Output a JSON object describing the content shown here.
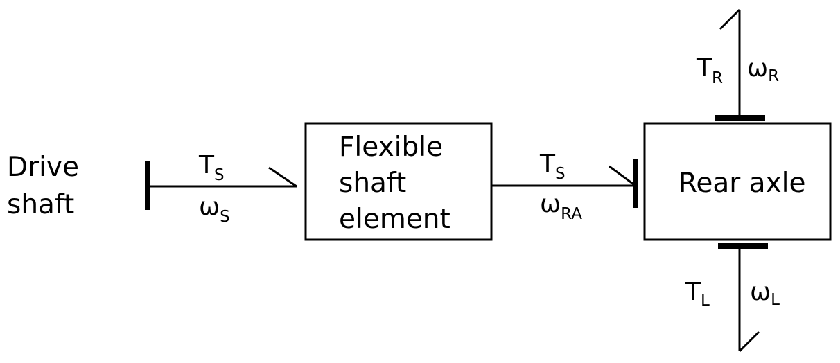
{
  "blocks": {
    "drive_shaft": {
      "line1": "Drive",
      "line2": "shaft"
    },
    "flexible_shaft": {
      "line1": "Flexible",
      "line2": "shaft",
      "line3": "element"
    },
    "rear_axle": {
      "label": "Rear axle"
    }
  },
  "signals": {
    "input_torque": {
      "base": "T",
      "sub": "S"
    },
    "input_speed": {
      "base": "ω",
      "sub": "S"
    },
    "mid_torque": {
      "base": "T",
      "sub": "S"
    },
    "mid_speed": {
      "base": "ω",
      "sub": "RA"
    },
    "right_torque": {
      "base": "T",
      "sub": "R"
    },
    "right_speed": {
      "base": "ω",
      "sub": "R"
    },
    "left_torque": {
      "base": "T",
      "sub": "L"
    },
    "left_speed": {
      "base": "ω",
      "sub": "L"
    }
  }
}
